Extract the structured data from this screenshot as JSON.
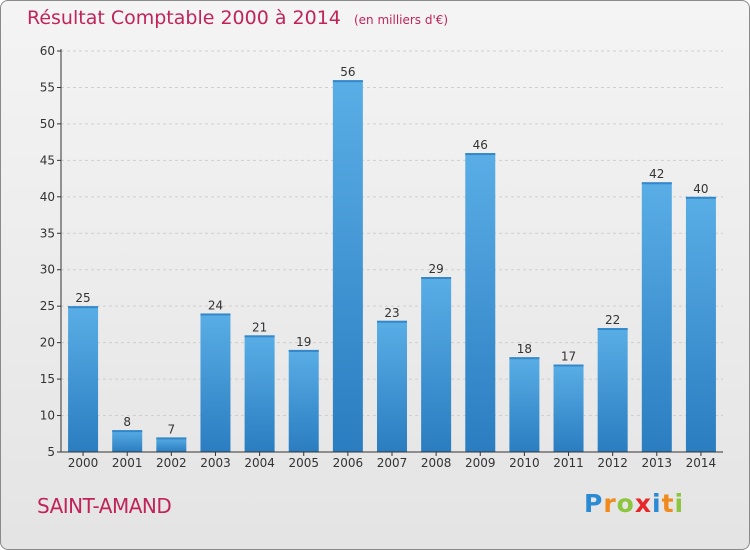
{
  "header": {
    "title": "Résultat Comptable 2000 à 2014",
    "unit": "(en milliers d'€)"
  },
  "footer": {
    "place": "SAINT-AMAND",
    "logo_text": "Proxiti",
    "logo_colors": [
      "#2a8ad4",
      "#f08a1c",
      "#8cc63f",
      "#e8262a",
      "#2a8ad4",
      "#f08a1c",
      "#8cc63f"
    ]
  },
  "colors": {
    "bar_top": "#5aaee6",
    "bar_bottom": "#2a7dc0",
    "grid": "#cfcfcf",
    "axis": "#333333",
    "title": "#c0245a"
  },
  "chart_data": {
    "type": "bar",
    "categories": [
      "2000",
      "2001",
      "2002",
      "2003",
      "2004",
      "2005",
      "2006",
      "2007",
      "2008",
      "2009",
      "2010",
      "2011",
      "2012",
      "2013",
      "2014"
    ],
    "values": [
      25,
      8,
      7,
      24,
      21,
      19,
      56,
      23,
      29,
      46,
      18,
      17,
      22,
      42,
      40
    ],
    "yticks": [
      5,
      10,
      15,
      20,
      25,
      30,
      35,
      40,
      45,
      50,
      55,
      60
    ],
    "ylim": [
      5,
      60
    ],
    "grid": "horizontal dashed",
    "legend": "none"
  }
}
